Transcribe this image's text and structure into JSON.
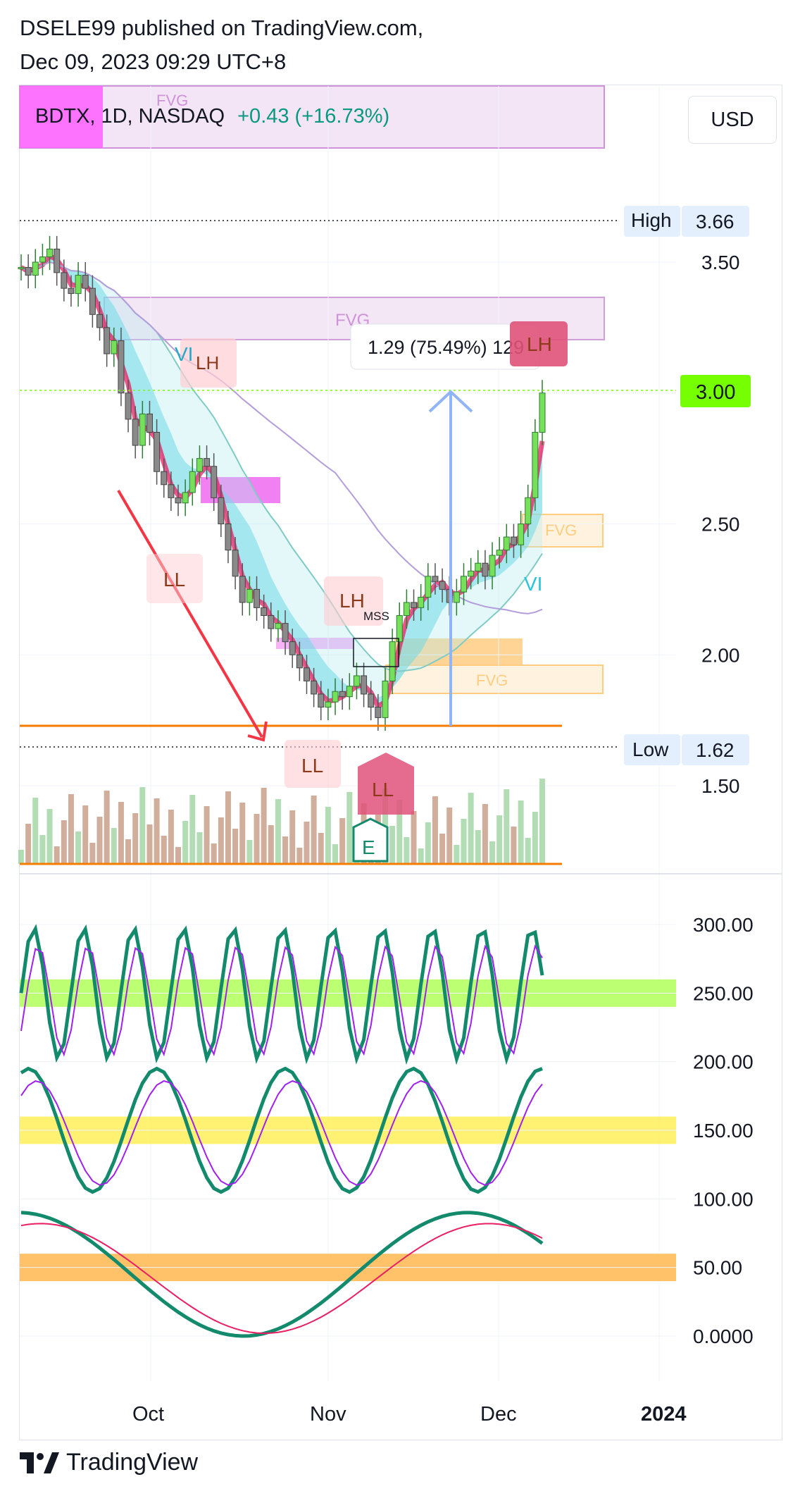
{
  "header": {
    "publisher_line": "DSELE99 published on TradingView.com,",
    "date_line": "Dec 09, 2023 09:29 UTC+8"
  },
  "symbol": {
    "name": "BDTX, 1D, NASDAQ",
    "change": "+0.43 (+16.73%)"
  },
  "currency_button": "USD",
  "price_labels": {
    "high_label": "High",
    "high_value": "3.66",
    "low_label": "Low",
    "low_value": "1.62",
    "last_value": "3.00"
  },
  "measure_label": "1.29 (75.49%) 129",
  "annotations": {
    "fvg": "FVG",
    "vi": "VI",
    "lh": "LH",
    "ll": "LL",
    "mss": "MSS",
    "earnings": "E"
  },
  "brand": "TradingView",
  "colors": {
    "up": "#26a69a",
    "down": "#ef5350",
    "last_price_bg": "#76ff03",
    "band_green": "#b2ff59",
    "band_yellow": "#ffee58",
    "band_orange": "#ffb74d",
    "osc_line": "#138a6c"
  },
  "chart_data": [
    {
      "type": "candlestick",
      "y_ticks": [
        "3.50",
        "3.00",
        "2.50",
        "2.00",
        "1.50"
      ],
      "x_ticks": [
        "Oct",
        "Nov",
        "Dec",
        "2024"
      ],
      "ylim": [
        1.25,
        3.9
      ],
      "high": 3.66,
      "low": 1.62,
      "last": 3.0,
      "close": [
        3.48,
        3.45,
        3.5,
        3.52,
        3.55,
        3.46,
        3.4,
        3.38,
        3.45,
        3.4,
        3.3,
        3.25,
        3.15,
        3.2,
        3.0,
        2.9,
        2.8,
        2.92,
        2.85,
        2.7,
        2.65,
        2.6,
        2.58,
        2.62,
        2.7,
        2.75,
        2.72,
        2.6,
        2.5,
        2.4,
        2.3,
        2.2,
        2.25,
        2.18,
        2.15,
        2.1,
        2.12,
        2.05,
        2.0,
        1.95,
        1.9,
        1.85,
        1.8,
        1.82,
        1.86,
        1.84,
        1.88,
        1.92,
        1.85,
        1.8,
        1.76,
        1.9,
        2.05,
        2.15,
        2.2,
        2.18,
        2.22,
        2.3,
        2.28,
        2.25,
        2.2,
        2.24,
        2.3,
        2.32,
        2.35,
        2.3,
        2.38,
        2.4,
        2.45,
        2.42,
        2.5,
        2.6,
        2.85,
        3.0
      ],
      "volume_overlay": true
    },
    {
      "type": "line",
      "panel": "oscillators",
      "y_ticks": [
        "300.00",
        "250.00",
        "200.00",
        "150.00",
        "100.00",
        "50.00",
        "0.0000"
      ],
      "ylim": [
        -30,
        330
      ],
      "bands": [
        [
          240,
          260
        ],
        [
          140,
          160
        ],
        [
          40,
          60
        ]
      ]
    }
  ]
}
